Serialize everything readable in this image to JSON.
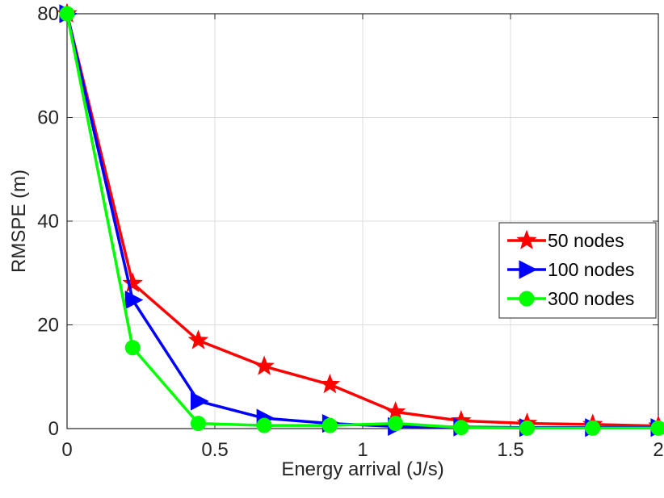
{
  "chart_data": {
    "type": "line",
    "title": "",
    "xlabel": "Energy arrival (J/s)",
    "ylabel": "RMSPE (m)",
    "xlim": [
      0,
      2
    ],
    "ylim": [
      0,
      80
    ],
    "xticks": [
      0,
      0.5,
      1,
      1.5,
      2
    ],
    "xtick_labels": [
      "0",
      "0.5",
      "1",
      "1.5",
      "2"
    ],
    "yticks": [
      0,
      20,
      40,
      60,
      80
    ],
    "ytick_labels": [
      "0",
      "20",
      "40",
      "60",
      "80"
    ],
    "grid": true,
    "legend_position": "right",
    "x": [
      0,
      0.222,
      0.444,
      0.667,
      0.889,
      1.111,
      1.333,
      1.556,
      1.778,
      2.0
    ],
    "series": [
      {
        "name": "50 nodes",
        "color": "#ff0000",
        "marker": "star",
        "values": [
          80,
          28,
          17,
          12,
          8.5,
          3.2,
          1.5,
          1.0,
          0.8,
          0.5
        ]
      },
      {
        "name": "100 nodes",
        "color": "#0000ff",
        "marker": "triangle-right",
        "values": [
          80,
          24.8,
          5.3,
          2.0,
          1.0,
          0.4,
          0.3,
          0.2,
          0.2,
          0.2
        ]
      },
      {
        "name": "300 nodes",
        "color": "#00ff00",
        "marker": "circle",
        "values": [
          80,
          15.6,
          1.0,
          0.6,
          0.6,
          1.0,
          0.2,
          0.1,
          0.1,
          0.1
        ]
      }
    ]
  }
}
